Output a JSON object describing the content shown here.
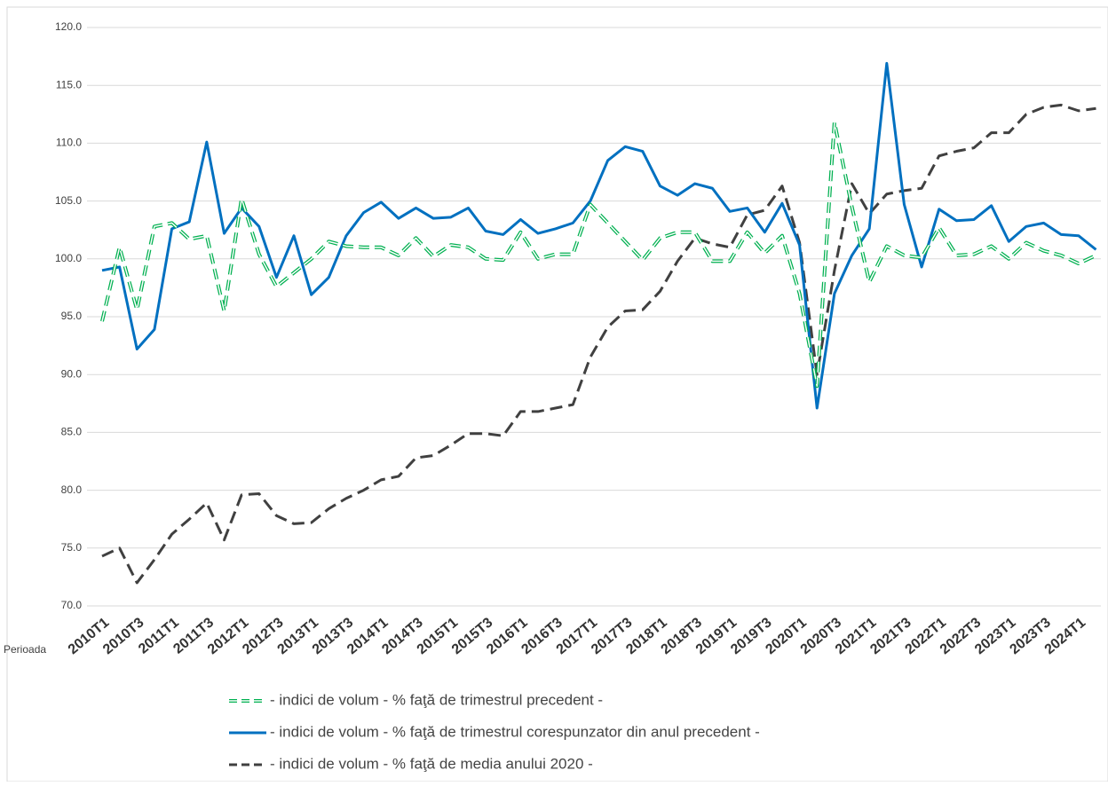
{
  "chart_data": {
    "type": "line",
    "x_label": "Perioada",
    "categories": [
      "2010T1",
      null,
      "2010T3",
      null,
      "2011T1",
      null,
      "2011T3",
      null,
      "2012T1",
      null,
      "2012T3",
      null,
      "2013T1",
      null,
      "2013T3",
      null,
      "2014T1",
      null,
      "2014T3",
      null,
      "2015T1",
      null,
      "2015T3",
      null,
      "2016T1",
      null,
      "2016T3",
      null,
      "2017T1",
      null,
      "2017T3",
      null,
      "2018T1",
      null,
      "2018T3",
      null,
      "2019T1",
      null,
      "2019T3",
      null,
      "2020T1",
      null,
      "2020T3",
      null,
      "2021T1",
      null,
      "2021T3",
      null,
      "2022T1",
      null,
      "2022T3",
      null,
      "2023T1",
      null,
      "2023T3",
      null,
      "2024T1",
      null
    ],
    "series": [
      {
        "name": "- indici de volum - % faţă de trimestrul precedent -",
        "color": "#00b050",
        "dash": "double",
        "values": [
          94.6,
          101.0,
          95.6,
          102.8,
          103.1,
          101.7,
          102.0,
          95.5,
          105.2,
          100.4,
          97.6,
          98.8,
          100.0,
          101.5,
          101.1,
          101.0,
          101.0,
          100.3,
          101.8,
          100.2,
          101.2,
          101.0,
          100.0,
          99.9,
          102.3,
          100.0,
          100.4,
          100.4,
          104.7,
          103.1,
          101.5,
          99.9,
          101.8,
          102.3,
          102.3,
          99.8,
          99.8,
          102.3,
          100.5,
          102.0,
          97.0,
          89.0,
          111.8,
          104.5,
          98.0,
          101.1,
          100.3,
          100.1,
          102.7,
          100.3,
          100.4,
          101.1,
          100.0,
          101.4,
          100.7,
          100.3,
          99.6,
          100.3
        ]
      },
      {
        "name": "- indici de volum - % faţă de trimestrul corespunzator din anul precedent -",
        "color": "#0070c0",
        "dash": "solid",
        "values": [
          99.0,
          99.3,
          92.2,
          93.9,
          102.6,
          103.2,
          110.1,
          102.2,
          104.4,
          102.8,
          98.4,
          102.0,
          96.9,
          98.4,
          102.0,
          104.0,
          104.9,
          103.5,
          104.4,
          103.5,
          103.6,
          104.4,
          102.4,
          102.1,
          103.4,
          102.2,
          102.6,
          103.1,
          105.0,
          108.5,
          109.7,
          109.3,
          106.3,
          105.5,
          106.5,
          106.1,
          104.1,
          104.4,
          102.3,
          104.8,
          101.2,
          87.1,
          97.0,
          100.3,
          102.6,
          116.9,
          104.7,
          99.3,
          104.3,
          103.3,
          103.4,
          104.6,
          101.5,
          102.8,
          103.1,
          102.1,
          102.0,
          100.8
        ]
      },
      {
        "name": "- indici de volum - % faţă de media anului 2020 -",
        "color": "#404040",
        "dash": "dashed",
        "values": [
          74.3,
          75.0,
          72.0,
          74.0,
          76.2,
          77.5,
          78.9,
          75.7,
          79.6,
          79.7,
          77.8,
          77.1,
          77.2,
          78.4,
          79.3,
          80.0,
          80.9,
          81.2,
          82.8,
          83.0,
          83.9,
          84.9,
          84.9,
          84.7,
          86.8,
          86.8,
          87.1,
          87.4,
          91.5,
          94.1,
          95.5,
          95.6,
          97.2,
          99.8,
          101.8,
          101.3,
          101.0,
          103.8,
          104.2,
          106.3,
          101.4,
          90.0,
          99.0,
          106.5,
          103.9,
          105.6,
          105.9,
          106.1,
          108.9,
          109.3,
          109.6,
          110.9,
          110.9,
          112.5,
          113.1,
          113.3,
          112.8,
          113.0
        ]
      }
    ],
    "ylim": [
      70,
      120
    ],
    "yticks": [
      {
        "value": 70,
        "label": "70.0"
      },
      {
        "value": 75,
        "label": "75.0"
      },
      {
        "value": 80,
        "label": "80.0"
      },
      {
        "value": 85,
        "label": "85.0"
      },
      {
        "value": 90,
        "label": "90.0"
      },
      {
        "value": 95,
        "label": "95.0"
      },
      {
        "value": 100,
        "label": "100.0"
      },
      {
        "value": 105,
        "label": "105.0"
      },
      {
        "value": 110,
        "label": "110.0"
      },
      {
        "value": 115,
        "label": "115.0"
      },
      {
        "value": 120,
        "label": "120.0"
      }
    ],
    "grid": true,
    "legend": "bottom"
  }
}
